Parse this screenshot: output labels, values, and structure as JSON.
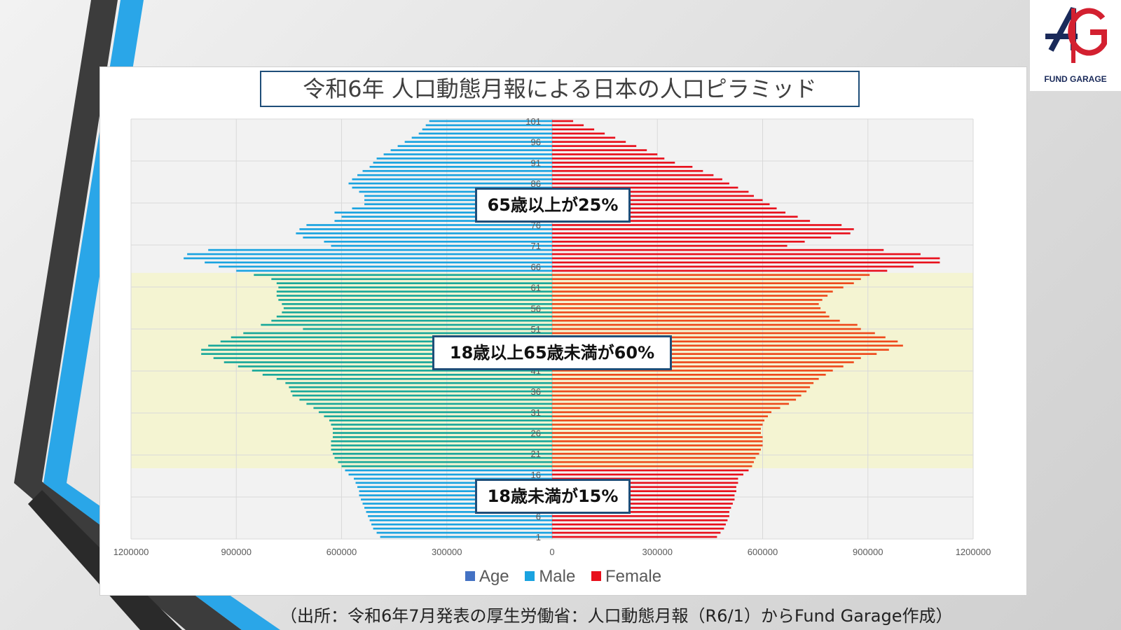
{
  "logo": {
    "text": "FUND GARAGE",
    "color_dark": "#1a2a5a",
    "color_red": "#d32030"
  },
  "source_note": "（出所：令和6年7月発表の厚生労働省：人口動態月報（R6/1）からFund Garage作成）",
  "callouts": {
    "elderly": "65歳以上が25%",
    "working": "18歳以上65歳未満が60%",
    "youth": "18歳未満が15%"
  },
  "colors": {
    "male": "#1aa3e0",
    "female": "#e8101c",
    "male_working": "#1aa89a",
    "female_working": "#ee4a1c",
    "age_legend": "#4472c4",
    "band_working": "#f4f4d2",
    "band_other": "#f2f2f2"
  },
  "chart_data": {
    "type": "bar",
    "orientation": "horizontal-pyramid",
    "title": "令和6年 人口動態月報による日本の人口ピラミッド",
    "legend": [
      "Age",
      "Male",
      "Female"
    ],
    "legend_position": "bottom",
    "xlim": [
      -1200000,
      1200000
    ],
    "x_ticks": [
      -1200000,
      -900000,
      -600000,
      -300000,
      0,
      300000,
      600000,
      900000,
      1200000
    ],
    "x_tick_labels": [
      "1200000",
      "900000",
      "600000",
      "300000",
      "0",
      "300000",
      "600000",
      "900000",
      "1200000"
    ],
    "y_tick_labels": [
      "1",
      "6",
      "11",
      "16",
      "21",
      "26",
      "31",
      "36",
      "41",
      "46",
      "51",
      "56",
      "61",
      "66",
      "71",
      "76",
      "81",
      "86",
      "91",
      "96",
      "101"
    ],
    "ages": [
      1,
      2,
      3,
      4,
      5,
      6,
      7,
      8,
      9,
      10,
      11,
      12,
      13,
      14,
      15,
      16,
      17,
      18,
      19,
      20,
      21,
      22,
      23,
      24,
      25,
      26,
      27,
      28,
      29,
      30,
      31,
      32,
      33,
      34,
      35,
      36,
      37,
      38,
      39,
      40,
      41,
      42,
      43,
      44,
      45,
      46,
      47,
      48,
      49,
      50,
      51,
      52,
      53,
      54,
      55,
      56,
      57,
      58,
      59,
      60,
      61,
      62,
      63,
      64,
      65,
      66,
      67,
      68,
      69,
      70,
      71,
      72,
      73,
      74,
      75,
      76,
      77,
      78,
      79,
      80,
      81,
      82,
      83,
      84,
      85,
      86,
      87,
      88,
      89,
      90,
      91,
      92,
      93,
      94,
      95,
      96,
      97,
      98,
      99,
      100,
      101
    ],
    "male": [
      490000,
      500000,
      510000,
      515000,
      520000,
      525000,
      530000,
      535000,
      540000,
      545000,
      550000,
      550000,
      555000,
      560000,
      565000,
      580000,
      590000,
      600000,
      610000,
      620000,
      625000,
      630000,
      630000,
      630000,
      625000,
      625000,
      625000,
      630000,
      635000,
      650000,
      665000,
      680000,
      700000,
      720000,
      740000,
      745000,
      750000,
      760000,
      785000,
      825000,
      855000,
      895000,
      935000,
      965000,
      1000000,
      1000000,
      980000,
      945000,
      915000,
      880000,
      710000,
      830000,
      800000,
      785000,
      770000,
      765000,
      770000,
      780000,
      785000,
      785000,
      780000,
      785000,
      800000,
      850000,
      900000,
      950000,
      990000,
      1050000,
      1040000,
      980000,
      630000,
      650000,
      710000,
      730000,
      720000,
      700000,
      620000,
      600000,
      620000,
      570000,
      535000,
      535000,
      535000,
      550000,
      570000,
      580000,
      570000,
      555000,
      540000,
      520000,
      510000,
      500000,
      480000,
      460000,
      440000,
      420000,
      400000,
      380000,
      370000,
      360000,
      350000
    ],
    "female": [
      470000,
      480000,
      490000,
      495000,
      500000,
      505000,
      505000,
      510000,
      515000,
      520000,
      520000,
      525000,
      525000,
      530000,
      530000,
      545000,
      560000,
      570000,
      575000,
      580000,
      590000,
      595000,
      600000,
      600000,
      600000,
      595000,
      595000,
      600000,
      605000,
      615000,
      625000,
      650000,
      675000,
      695000,
      710000,
      725000,
      735000,
      745000,
      760000,
      780000,
      800000,
      830000,
      860000,
      880000,
      925000,
      960000,
      1000000,
      985000,
      950000,
      920000,
      880000,
      870000,
      820000,
      790000,
      780000,
      765000,
      760000,
      770000,
      785000,
      800000,
      830000,
      860000,
      880000,
      905000,
      955000,
      1030000,
      1105000,
      1105000,
      1050000,
      945000,
      670000,
      720000,
      795000,
      850000,
      860000,
      825000,
      735000,
      700000,
      665000,
      640000,
      620000,
      600000,
      575000,
      560000,
      530000,
      505000,
      485000,
      460000,
      430000,
      400000,
      350000,
      320000,
      300000,
      270000,
      240000,
      210000,
      180000,
      150000,
      120000,
      90000,
      60000
    ]
  }
}
